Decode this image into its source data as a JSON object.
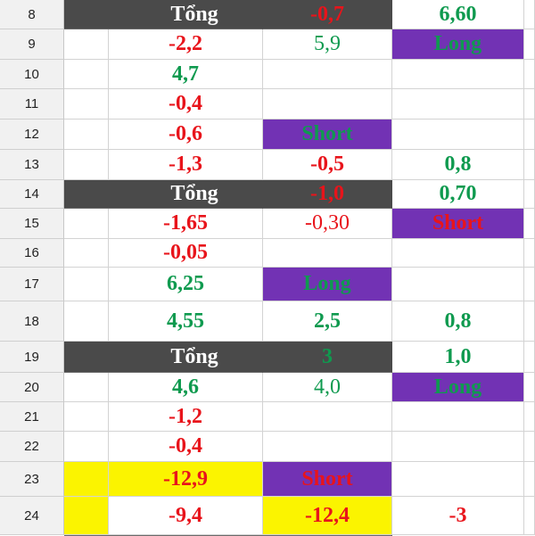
{
  "rows": [
    {
      "num": "8",
      "cells": [
        "",
        "Tổng",
        "",
        "-0,7",
        "6,60"
      ]
    },
    {
      "num": "9",
      "cells": [
        "",
        "-2,2",
        "5,9",
        "Long"
      ]
    },
    {
      "num": "10",
      "cells": [
        "",
        "4,7",
        "",
        ""
      ]
    },
    {
      "num": "11",
      "cells": [
        "",
        "-0,4",
        "",
        ""
      ]
    },
    {
      "num": "12",
      "cells": [
        "",
        "-0,6",
        "Short",
        ""
      ]
    },
    {
      "num": "13",
      "cells": [
        "",
        "-1,3",
        "-0,5",
        "0,8"
      ]
    },
    {
      "num": "14",
      "cells": [
        "",
        "Tổng",
        "",
        "-1,0",
        "0,70"
      ]
    },
    {
      "num": "15",
      "cells": [
        "",
        "-1,65",
        "-0,30",
        "Short"
      ]
    },
    {
      "num": "16",
      "cells": [
        "",
        "-0,05",
        "",
        ""
      ]
    },
    {
      "num": "17",
      "cells": [
        "",
        "6,25",
        "Long",
        ""
      ]
    },
    {
      "num": "18",
      "cells": [
        "",
        "4,55",
        "2,5",
        "0,8"
      ]
    },
    {
      "num": "19",
      "cells": [
        "",
        "Tổng",
        "",
        "3",
        "1,0"
      ]
    },
    {
      "num": "20",
      "cells": [
        "",
        "4,6",
        "4,0",
        "Long"
      ]
    },
    {
      "num": "21",
      "cells": [
        "",
        "-1,2",
        "",
        ""
      ]
    },
    {
      "num": "22",
      "cells": [
        "",
        "-0,4",
        "",
        ""
      ]
    },
    {
      "num": "23",
      "cells": [
        "",
        "-12,9",
        "Short",
        ""
      ]
    },
    {
      "num": "24",
      "cells": [
        "",
        "-9,4",
        "-12,4",
        "-3"
      ]
    }
  ],
  "colors": {
    "header_dark": "#4a4a4a",
    "purple": "#7232b4",
    "yellow": "#fbf400",
    "red": "#e8141b",
    "green": "#0f9a4f"
  }
}
